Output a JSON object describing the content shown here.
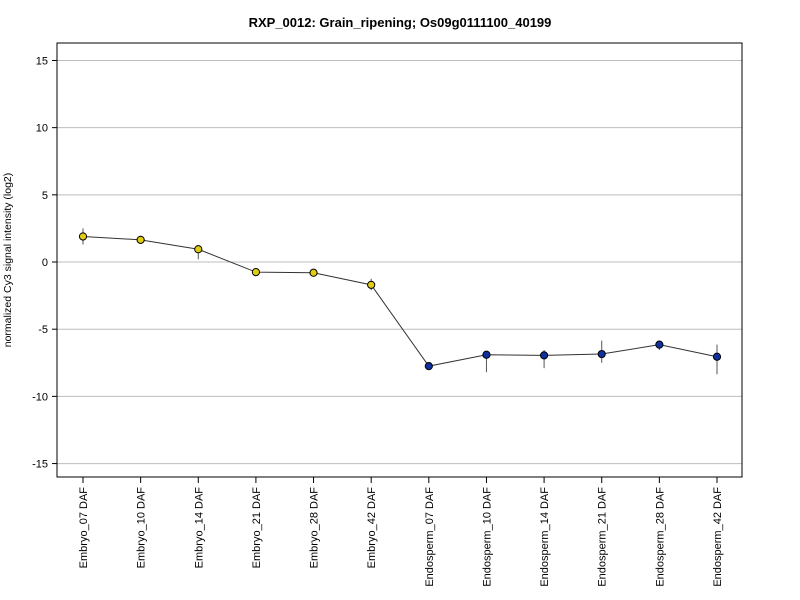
{
  "chart_data": {
    "type": "line",
    "title": "RXP_0012: Grain_ripening; Os09g0111100_40199",
    "xlabel": "",
    "ylabel": "normalized Cy3 signal intensity (log2)",
    "ylim": [
      -16,
      16.3
    ],
    "yticks": [
      -15,
      -10,
      -5,
      0,
      5,
      10,
      15
    ],
    "grid": true,
    "categories": [
      "Embryo_07 DAF",
      "Embryo_10 DAF",
      "Embryo_14 DAF",
      "Embryo_21 DAF",
      "Embryo_28 DAF",
      "Embryo_42 DAF",
      "Endosperm_07 DAF",
      "Endosperm_10 DAF",
      "Endosperm_14 DAF",
      "Endosperm_21 DAF",
      "Endosperm_28 DAF",
      "Endosperm_42 DAF"
    ],
    "values": [
      1.9,
      1.65,
      0.95,
      -0.75,
      -0.8,
      -1.7,
      -7.75,
      -6.9,
      -6.95,
      -6.85,
      -6.15,
      -7.05
    ],
    "error_low": [
      1.3,
      1.35,
      0.2,
      -0.95,
      -1.0,
      -2.1,
      -7.95,
      -8.2,
      -7.9,
      -7.5,
      -6.55,
      -8.35
    ],
    "error_high": [
      2.5,
      1.95,
      1.25,
      -0.55,
      -0.6,
      -1.25,
      -7.55,
      -6.65,
      -6.55,
      -5.85,
      -5.95,
      -6.15
    ],
    "point_colors": [
      "#e0cc10",
      "#e0cc10",
      "#e0cc10",
      "#e0cc10",
      "#e0cc10",
      "#e0cc10",
      "#1030a0",
      "#1030a0",
      "#1030a0",
      "#1030a0",
      "#1030a0",
      "#1030a0"
    ],
    "line_color": "#333333",
    "grid_color": "#bdbdbd"
  }
}
